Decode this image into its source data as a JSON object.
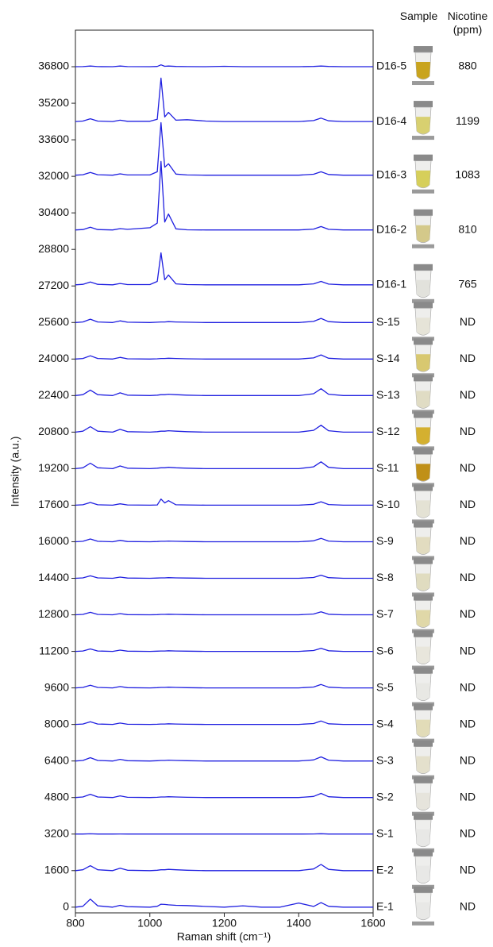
{
  "chart_data": {
    "type": "line",
    "x_label": "Raman shift (cm⁻¹)",
    "y_label": "Intensity (a.u.)",
    "sample_header": "Sample",
    "nicotine_header": "Nicotine (ppm)",
    "xlim": [
      800,
      1600
    ],
    "xticks": [
      800,
      1000,
      1200,
      1400,
      1600
    ],
    "ylim": [
      -250,
      38400
    ],
    "yticks": [
      0,
      1600,
      3200,
      4800,
      6400,
      8000,
      9600,
      11200,
      12800,
      14400,
      16000,
      17600,
      19200,
      20800,
      22400,
      24000,
      25600,
      27200,
      28800,
      30400,
      32000,
      33600,
      35200,
      36800
    ],
    "color": "#1f1fe0",
    "x": [
      800,
      820,
      840,
      860,
      900,
      920,
      940,
      1000,
      1020,
      1030,
      1040,
      1050,
      1070,
      1100,
      1150,
      1200,
      1250,
      1300,
      1350,
      1400,
      1440,
      1460,
      1480,
      1520,
      1560,
      1600
    ],
    "series": [
      {
        "name": "D16-5",
        "nicotine": 880,
        "liquid_color": "#c9a41e",
        "values": [
          36800,
          36805,
          36830,
          36805,
          36800,
          36830,
          36805,
          36800,
          36810,
          36880,
          36820,
          36830,
          36810,
          36805,
          36800,
          36820,
          36800,
          36800,
          36800,
          36800,
          36810,
          36830,
          36810,
          36800,
          36800,
          36800
        ]
      },
      {
        "name": "D16-4",
        "nicotine": 1199,
        "liquid_color": "#d8d070",
        "values": [
          34400,
          34420,
          34520,
          34420,
          34400,
          34460,
          34410,
          34410,
          34500,
          36300,
          34600,
          34800,
          34460,
          34480,
          34420,
          34400,
          34400,
          34400,
          34400,
          34400,
          34440,
          34550,
          34430,
          34400,
          34400,
          34400
        ]
      },
      {
        "name": "D16-3",
        "nicotine": 1083,
        "liquid_color": "#d6cf5a",
        "values": [
          32050,
          32070,
          32170,
          32070,
          32050,
          32110,
          32060,
          32060,
          32200,
          34350,
          32400,
          32550,
          32100,
          32060,
          32050,
          32050,
          32050,
          32050,
          32050,
          32050,
          32090,
          32200,
          32080,
          32050,
          32050,
          32050
        ]
      },
      {
        "name": "D16-2",
        "nicotine": 810,
        "liquid_color": "#d4c98a",
        "values": [
          29650,
          29670,
          29770,
          29670,
          29650,
          29710,
          29680,
          29750,
          29950,
          32650,
          30000,
          30350,
          29700,
          29660,
          29650,
          29650,
          29650,
          29650,
          29650,
          29650,
          29690,
          29800,
          29680,
          29650,
          29650,
          29650
        ]
      },
      {
        "name": "D16-1",
        "nicotine": 765,
        "liquid_color": "#e2e2dc",
        "values": [
          27250,
          27270,
          27370,
          27270,
          27250,
          27310,
          27260,
          27260,
          27400,
          28650,
          27470,
          27680,
          27290,
          27260,
          27250,
          27250,
          27250,
          27250,
          27250,
          27250,
          27290,
          27400,
          27280,
          27250,
          27250,
          27250
        ]
      },
      {
        "name": "S-15",
        "nicotine": "ND",
        "liquid_color": "#e6e4d8",
        "values": [
          25600,
          25624,
          25744,
          25624,
          25600,
          25672,
          25612,
          25600,
          25612,
          25624,
          25624,
          25636,
          25624,
          25612,
          25600,
          25600,
          25600,
          25600,
          25600,
          25600,
          25648,
          25780,
          25636,
          25600,
          25600,
          25600
        ]
      },
      {
        "name": "S-14",
        "nicotine": "ND",
        "liquid_color": "#d8c870",
        "values": [
          24000,
          24024,
          24144,
          24024,
          24000,
          24072,
          24012,
          24000,
          24012,
          24024,
          24024,
          24036,
          24024,
          24012,
          24000,
          24000,
          24000,
          24000,
          24000,
          24000,
          24048,
          24180,
          24036,
          24000,
          24000,
          24000
        ]
      },
      {
        "name": "S-13",
        "nicotine": "ND",
        "liquid_color": "#e0dcc4",
        "values": [
          22400,
          22440,
          22640,
          22440,
          22400,
          22520,
          22420,
          22400,
          22420,
          22440,
          22440,
          22460,
          22440,
          22420,
          22400,
          22400,
          22400,
          22400,
          22400,
          22400,
          22480,
          22700,
          22460,
          22400,
          22400,
          22400
        ]
      },
      {
        "name": "S-12",
        "nicotine": "ND",
        "liquid_color": "#d4b030",
        "values": [
          20800,
          20840,
          21040,
          20840,
          20800,
          20920,
          20820,
          20800,
          20820,
          20840,
          20840,
          20860,
          20840,
          20820,
          20800,
          20800,
          20800,
          20800,
          20800,
          20800,
          20880,
          21100,
          20860,
          20800,
          20800,
          20800
        ]
      },
      {
        "name": "S-11",
        "nicotine": "ND",
        "liquid_color": "#c09018",
        "values": [
          19200,
          19240,
          19440,
          19240,
          19200,
          19320,
          19220,
          19200,
          19220,
          19240,
          19240,
          19260,
          19240,
          19220,
          19200,
          19200,
          19200,
          19200,
          19200,
          19200,
          19280,
          19500,
          19260,
          19200,
          19200,
          19200
        ]
      },
      {
        "name": "S-10",
        "nicotine": "ND",
        "liquid_color": "#e4e2d4",
        "values": [
          17600,
          17620,
          17720,
          17620,
          17600,
          17660,
          17610,
          17600,
          17610,
          17870,
          17700,
          17800,
          17620,
          17610,
          17600,
          17600,
          17600,
          17600,
          17600,
          17600,
          17640,
          17750,
          17630,
          17600,
          17600,
          17600
        ]
      },
      {
        "name": "S-9",
        "nicotine": "ND",
        "liquid_color": "#e2dcc0",
        "values": [
          16000,
          16020,
          16120,
          16020,
          16000,
          16060,
          16010,
          16000,
          16010,
          16020,
          16020,
          16030,
          16020,
          16010,
          16000,
          16000,
          16000,
          16000,
          16000,
          16000,
          16040,
          16150,
          16030,
          16000,
          16000,
          16000
        ]
      },
      {
        "name": "S-8",
        "nicotine": "ND",
        "liquid_color": "#e0dcc0",
        "values": [
          14400,
          14418,
          14508,
          14418,
          14400,
          14454,
          14409,
          14400,
          14409,
          14418,
          14418,
          14427,
          14418,
          14409,
          14400,
          14400,
          14400,
          14400,
          14400,
          14400,
          14436,
          14535,
          14427,
          14400,
          14400,
          14400
        ]
      },
      {
        "name": "S-7",
        "nicotine": "ND",
        "liquid_color": "#e0d8a8",
        "values": [
          12800,
          12818,
          12908,
          12818,
          12800,
          12854,
          12809,
          12800,
          12809,
          12818,
          12818,
          12827,
          12818,
          12809,
          12800,
          12800,
          12800,
          12800,
          12800,
          12800,
          12836,
          12935,
          12827,
          12800,
          12800,
          12800
        ]
      },
      {
        "name": "S-6",
        "nicotine": "ND",
        "liquid_color": "#e8e6dc",
        "values": [
          11200,
          11218,
          11308,
          11218,
          11200,
          11254,
          11209,
          11200,
          11209,
          11218,
          11218,
          11227,
          11218,
          11209,
          11200,
          11200,
          11200,
          11200,
          11200,
          11200,
          11236,
          11335,
          11227,
          11200,
          11200,
          11200
        ]
      },
      {
        "name": "S-5",
        "nicotine": "ND",
        "liquid_color": "#e8e8e4",
        "values": [
          9600,
          9620,
          9720,
          9620,
          9600,
          9660,
          9610,
          9600,
          9610,
          9620,
          9620,
          9630,
          9620,
          9610,
          9600,
          9600,
          9600,
          9600,
          9600,
          9600,
          9640,
          9750,
          9630,
          9600,
          9600,
          9600
        ]
      },
      {
        "name": "S-4",
        "nicotine": "ND",
        "liquid_color": "#e2dcb8",
        "values": [
          8000,
          8020,
          8120,
          8020,
          8000,
          8060,
          8010,
          8000,
          8010,
          8020,
          8020,
          8030,
          8020,
          8010,
          8000,
          8000,
          8000,
          8000,
          8000,
          8000,
          8040,
          8150,
          8030,
          8000,
          8000,
          8000
        ]
      },
      {
        "name": "S-3",
        "nicotine": "ND",
        "liquid_color": "#e4e0cc",
        "values": [
          6400,
          6424,
          6544,
          6424,
          6400,
          6472,
          6412,
          6400,
          6412,
          6424,
          6424,
          6436,
          6424,
          6412,
          6400,
          6400,
          6400,
          6400,
          6400,
          6400,
          6448,
          6580,
          6436,
          6400,
          6400,
          6400
        ]
      },
      {
        "name": "S-2",
        "nicotine": "ND",
        "liquid_color": "#e6e4dc",
        "values": [
          4800,
          4824,
          4944,
          4824,
          4800,
          4872,
          4812,
          4800,
          4812,
          4824,
          4824,
          4836,
          4824,
          4812,
          4800,
          4800,
          4800,
          4800,
          4800,
          4800,
          4848,
          4980,
          4836,
          4800,
          4800,
          4800
        ]
      },
      {
        "name": "S-1",
        "nicotine": "ND",
        "liquid_color": "#e8e8e6",
        "values": [
          3200,
          3202,
          3212,
          3202,
          3200,
          3206,
          3201,
          3200,
          3201,
          3202,
          3202,
          3203,
          3202,
          3201,
          3200,
          3200,
          3200,
          3200,
          3200,
          3200,
          3204,
          3215,
          3203,
          3200,
          3200,
          3200
        ]
      },
      {
        "name": "E-2",
        "nicotine": "ND",
        "liquid_color": "#e8e8e6",
        "values": [
          1600,
          1636,
          1816,
          1636,
          1600,
          1708,
          1618,
          1600,
          1618,
          1636,
          1636,
          1654,
          1636,
          1618,
          1600,
          1600,
          1600,
          1600,
          1600,
          1600,
          1672,
          1870,
          1654,
          1600,
          1600,
          1600
        ]
      },
      {
        "name": "E-1",
        "nicotine": "ND",
        "liquid_color": "#e8e8e6",
        "values": [
          0,
          40,
          350,
          60,
          0,
          80,
          20,
          0,
          40,
          130,
          120,
          100,
          80,
          70,
          30,
          0,
          60,
          0,
          0,
          180,
          30,
          200,
          40,
          0,
          0,
          0
        ]
      }
    ]
  }
}
